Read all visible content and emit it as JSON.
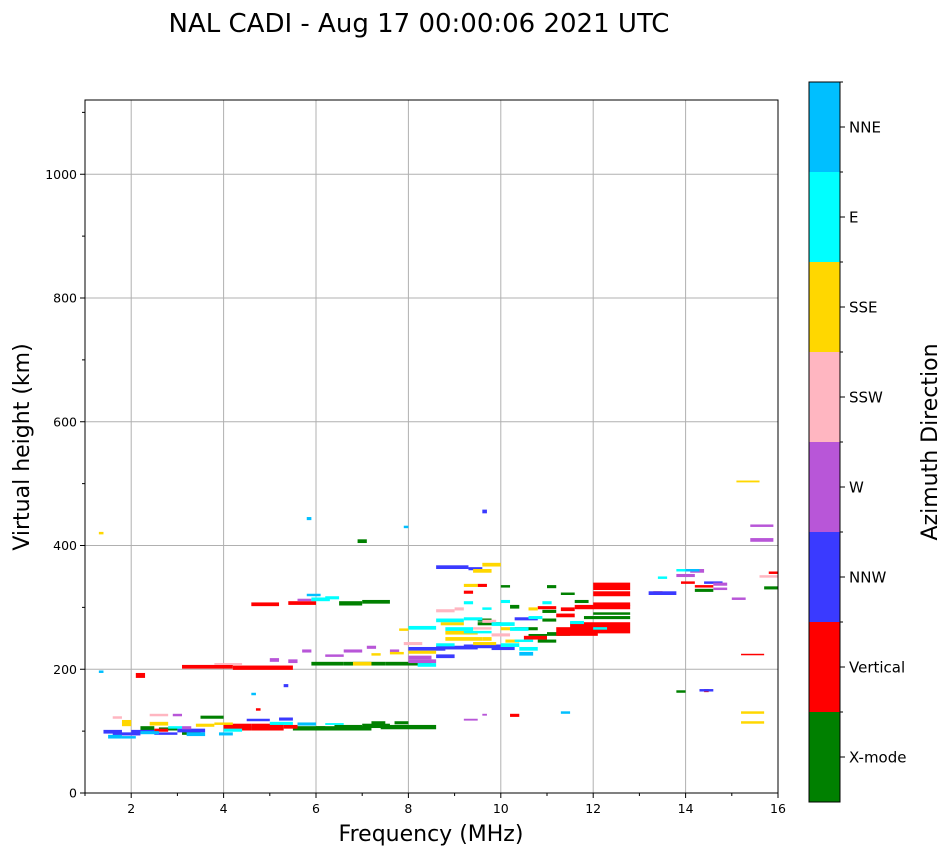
{
  "chart_data": {
    "type": "scatter",
    "title": "NAL CADI - Aug 17 00:00:06 2021 UTC",
    "xlabel": "Frequency (MHz)",
    "ylabel": "Virtual height (km)",
    "xlim": [
      1,
      16
    ],
    "ylim": [
      0,
      1120
    ],
    "xticks": [
      2,
      4,
      6,
      8,
      10,
      12,
      14,
      16
    ],
    "yticks": [
      0,
      200,
      400,
      600,
      800,
      1000
    ],
    "grid": true,
    "colorbar": {
      "label": "Azimuth Direction",
      "categories": [
        {
          "name": "X-mode",
          "color": "#008000"
        },
        {
          "name": "Vertical",
          "color": "#ff0000"
        },
        {
          "name": "NNW",
          "color": "#3a3aff"
        },
        {
          "name": "W",
          "color": "#b856d8"
        },
        {
          "name": "SSW",
          "color": "#ffb6c1"
        },
        {
          "name": "SSE",
          "color": "#ffd700"
        },
        {
          "name": "E",
          "color": "#00ffff"
        },
        {
          "name": "NNE",
          "color": "#00bfff"
        }
      ]
    },
    "series": [
      {
        "name": "X-mode",
        "points": [
          [
            3.1,
            100,
            3.5,
            94
          ],
          [
            3.5,
            125,
            4.0,
            120
          ],
          [
            4.6,
            108,
            5.2,
            101
          ],
          [
            5.5,
            108,
            6.2,
            101
          ],
          [
            6.0,
            108,
            7.2,
            101
          ],
          [
            6.4,
            110,
            7.0,
            103
          ],
          [
            7.0,
            112,
            7.6,
            105
          ],
          [
            7.4,
            110,
            8.6,
            103
          ],
          [
            7.2,
            116,
            7.5,
            111
          ],
          [
            7.7,
            116,
            8.0,
            111
          ],
          [
            5.9,
            212,
            6.6,
            206
          ],
          [
            6.6,
            212,
            7.5,
            206
          ],
          [
            7.5,
            212,
            8.5,
            206
          ],
          [
            6.5,
            310,
            7.0,
            303
          ],
          [
            7.0,
            312,
            7.6,
            306
          ],
          [
            6.9,
            410,
            7.1,
            404
          ],
          [
            9.5,
            282,
            9.8,
            277
          ],
          [
            9.5,
            276,
            10.0,
            271
          ],
          [
            10.3,
            268,
            10.8,
            263
          ],
          [
            10.6,
            257,
            11.0,
            252
          ],
          [
            10.8,
            248,
            11.2,
            243
          ],
          [
            10.2,
            304,
            10.4,
            298
          ],
          [
            10.9,
            296,
            11.2,
            291
          ],
          [
            11.0,
            260,
            11.5,
            254
          ],
          [
            10.0,
            336,
            10.2,
            332
          ],
          [
            11.3,
            324,
            11.6,
            320
          ],
          [
            11.8,
            286,
            12.8,
            281
          ],
          [
            11.0,
            336,
            11.2,
            331
          ],
          [
            10.9,
            282,
            11.2,
            277
          ],
          [
            13.8,
            166,
            14.0,
            162
          ],
          [
            14.2,
            330,
            14.6,
            325
          ],
          [
            15.7,
            334,
            16.0,
            329
          ],
          [
            11.6,
            312,
            11.9,
            307
          ],
          [
            12.0,
            292,
            12.8,
            288
          ],
          [
            2.2,
            108,
            2.5,
            101
          ],
          [
            2.6,
            106,
            3.0,
            101
          ]
        ]
      },
      {
        "name": "Vertical",
        "points": [
          [
            2.1,
            194,
            2.3,
            186
          ],
          [
            3.1,
            207,
            4.2,
            201
          ],
          [
            4.2,
            206,
            5.5,
            199
          ],
          [
            4.0,
            112,
            4.6,
            101
          ],
          [
            4.6,
            112,
            5.3,
            101
          ],
          [
            5.3,
            110,
            5.6,
            104
          ],
          [
            4.6,
            308,
            5.2,
            302
          ],
          [
            5.4,
            310,
            6.0,
            304
          ],
          [
            12.0,
            340,
            12.8,
            328
          ],
          [
            12.0,
            326,
            12.8,
            318
          ],
          [
            11.5,
            276,
            12.8,
            258
          ],
          [
            11.2,
            268,
            12.1,
            254
          ],
          [
            10.5,
            254,
            11.0,
            248
          ],
          [
            11.6,
            304,
            12.8,
            297
          ],
          [
            12.0,
            308,
            12.8,
            303
          ],
          [
            9.5,
            338,
            9.7,
            333
          ],
          [
            10.8,
            302,
            11.2,
            297
          ],
          [
            11.3,
            300,
            11.6,
            294
          ],
          [
            11.2,
            290,
            11.6,
            284
          ],
          [
            13.9,
            342,
            14.2,
            338
          ],
          [
            14.2,
            336,
            14.6,
            332
          ],
          [
            14.4,
            168,
            14.5,
            163
          ],
          [
            15.2,
            225,
            15.7,
            223
          ],
          [
            10.2,
            128,
            10.4,
            123
          ],
          [
            9.2,
            327,
            9.4,
            322
          ],
          [
            2.5,
            104,
            2.8,
            99
          ],
          [
            4.7,
            137,
            4.8,
            133
          ],
          [
            15.8,
            358,
            16.0,
            354
          ],
          [
            13.3,
            326,
            13.5,
            321
          ]
        ]
      },
      {
        "name": "NNW",
        "points": [
          [
            8.6,
            368,
            9.3,
            362
          ],
          [
            9.3,
            365,
            9.6,
            360
          ],
          [
            9.6,
            458,
            9.7,
            452
          ],
          [
            8.0,
            236,
            8.8,
            230
          ],
          [
            8.6,
            238,
            9.5,
            232
          ],
          [
            9.2,
            240,
            10.0,
            234
          ],
          [
            9.8,
            236,
            10.3,
            231
          ],
          [
            10.3,
            284,
            10.8,
            279
          ],
          [
            13.2,
            326,
            13.8,
            320
          ],
          [
            14.4,
            342,
            14.8,
            338
          ],
          [
            14.3,
            168,
            14.6,
            164
          ],
          [
            4.5,
            120,
            5.0,
            116
          ],
          [
            5.2,
            122,
            5.5,
            117
          ],
          [
            1.4,
            102,
            1.8,
            96
          ],
          [
            1.6,
            98,
            2.2,
            93
          ],
          [
            2.0,
            102,
            2.5,
            97
          ],
          [
            2.5,
            98,
            3.0,
            94
          ],
          [
            3.0,
            104,
            3.6,
            98
          ],
          [
            8.6,
            224,
            9.0,
            218
          ],
          [
            5.3,
            176,
            5.4,
            171
          ]
        ]
      },
      {
        "name": "W",
        "points": [
          [
            15.4,
            434,
            15.9,
            430
          ],
          [
            15.4,
            412,
            15.9,
            406
          ],
          [
            14.6,
            340,
            14.9,
            335
          ],
          [
            14.6,
            332,
            14.9,
            328
          ],
          [
            14.1,
            362,
            14.4,
            356
          ],
          [
            13.8,
            354,
            14.2,
            349
          ],
          [
            15.0,
            316,
            15.3,
            312
          ],
          [
            8.0,
            216,
            8.6,
            210
          ],
          [
            8.0,
            222,
            8.5,
            216
          ],
          [
            6.6,
            232,
            7.0,
            227
          ],
          [
            6.2,
            224,
            6.6,
            220
          ],
          [
            5.7,
            232,
            5.9,
            227
          ],
          [
            5.4,
            216,
            5.6,
            210
          ],
          [
            5.0,
            218,
            5.2,
            212
          ],
          [
            5.6,
            314,
            5.9,
            310
          ],
          [
            9.2,
            120,
            9.5,
            117
          ],
          [
            9.6,
            128,
            9.7,
            125
          ],
          [
            7.1,
            238,
            7.3,
            233
          ],
          [
            7.6,
            232,
            7.8,
            227
          ],
          [
            3.1,
            108,
            3.3,
            103
          ],
          [
            2.9,
            128,
            3.1,
            124
          ]
        ]
      },
      {
        "name": "SSW",
        "points": [
          [
            8.6,
            297,
            9.0,
            292
          ],
          [
            9.0,
            300,
            9.2,
            295
          ],
          [
            9.8,
            258,
            10.2,
            253
          ],
          [
            15.6,
            352,
            16.0,
            348
          ],
          [
            9.6,
            280,
            9.9,
            275
          ],
          [
            7.9,
            244,
            8.3,
            239
          ],
          [
            3.8,
            210,
            4.4,
            207
          ],
          [
            2.4,
            128,
            2.8,
            124
          ],
          [
            1.6,
            124,
            1.8,
            120
          ],
          [
            9.4,
            268,
            9.8,
            264
          ]
        ]
      },
      {
        "name": "SSE",
        "points": [
          [
            15.1,
            505,
            15.6,
            502
          ],
          [
            15.2,
            132,
            15.7,
            128
          ],
          [
            15.2,
            116,
            15.7,
            112
          ],
          [
            9.6,
            372,
            10.0,
            366
          ],
          [
            9.4,
            362,
            9.8,
            356
          ],
          [
            9.2,
            338,
            9.5,
            333
          ],
          [
            8.7,
            276,
            9.2,
            271
          ],
          [
            8.8,
            262,
            9.5,
            256
          ],
          [
            8.8,
            252,
            9.6,
            246
          ],
          [
            9.6,
            252,
            9.8,
            246
          ],
          [
            9.4,
            244,
            9.9,
            239
          ],
          [
            10.0,
            268,
            10.3,
            263
          ],
          [
            10.1,
            248,
            10.4,
            243
          ],
          [
            8.0,
            230,
            8.6,
            225
          ],
          [
            7.6,
            228,
            7.9,
            224
          ],
          [
            6.8,
            212,
            7.2,
            206
          ],
          [
            7.8,
            266,
            8.0,
            262
          ],
          [
            7.2,
            226,
            7.4,
            222
          ],
          [
            1.8,
            118,
            2.0,
            108
          ],
          [
            2.4,
            115,
            2.8,
            109
          ],
          [
            3.8,
            114,
            4.2,
            110
          ],
          [
            3.4,
            112,
            3.8,
            107
          ],
          [
            1.3,
            422,
            1.4,
            418
          ],
          [
            10.6,
            300,
            10.8,
            295
          ]
        ]
      },
      {
        "name": "E",
        "points": [
          [
            8.6,
            282,
            9.2,
            276
          ],
          [
            9.2,
            284,
            9.6,
            279
          ],
          [
            8.8,
            268,
            9.4,
            262
          ],
          [
            9.2,
            262,
            9.8,
            258
          ],
          [
            9.8,
            276,
            10.3,
            270
          ],
          [
            10.2,
            268,
            10.6,
            262
          ],
          [
            10.6,
            286,
            10.9,
            281
          ],
          [
            10.0,
            242,
            10.4,
            236
          ],
          [
            10.3,
            248,
            10.7,
            244
          ],
          [
            10.4,
            236,
            10.8,
            230
          ],
          [
            8.0,
            270,
            8.6,
            264
          ],
          [
            8.6,
            242,
            9.0,
            237
          ],
          [
            9.2,
            310,
            9.4,
            305
          ],
          [
            9.6,
            300,
            9.8,
            296
          ],
          [
            13.8,
            362,
            14.1,
            358
          ],
          [
            13.4,
            350,
            13.6,
            346
          ],
          [
            12.0,
            268,
            12.3,
            264
          ],
          [
            11.5,
            278,
            11.8,
            273
          ],
          [
            10.0,
            312,
            10.2,
            307
          ],
          [
            10.9,
            310,
            11.1,
            305
          ],
          [
            8.2,
            210,
            8.6,
            204
          ],
          [
            5.9,
            316,
            6.3,
            310
          ],
          [
            6.2,
            318,
            6.5,
            313
          ],
          [
            5.0,
            115,
            5.5,
            110
          ],
          [
            6.2,
            113,
            6.6,
            110
          ],
          [
            4.0,
            104,
            4.4,
            99
          ],
          [
            2.8,
            108,
            3.1,
            104
          ]
        ]
      },
      {
        "name": "NNE",
        "points": [
          [
            5.8,
            322,
            6.1,
            318
          ],
          [
            5.8,
            446,
            5.9,
            441
          ],
          [
            7.9,
            432,
            8.0,
            428
          ],
          [
            11.3,
            132,
            11.5,
            128
          ],
          [
            14.0,
            362,
            14.3,
            358
          ],
          [
            1.3,
            198,
            1.4,
            194
          ],
          [
            4.6,
            162,
            4.7,
            158
          ],
          [
            3.2,
            98,
            3.6,
            92
          ],
          [
            2.2,
            100,
            2.6,
            95
          ],
          [
            1.5,
            94,
            1.8,
            88
          ],
          [
            3.9,
            98,
            4.2,
            93
          ],
          [
            10.4,
            228,
            10.7,
            222
          ],
          [
            5.6,
            114,
            6.0,
            109
          ],
          [
            1.8,
            92,
            2.1,
            88
          ]
        ]
      }
    ]
  }
}
